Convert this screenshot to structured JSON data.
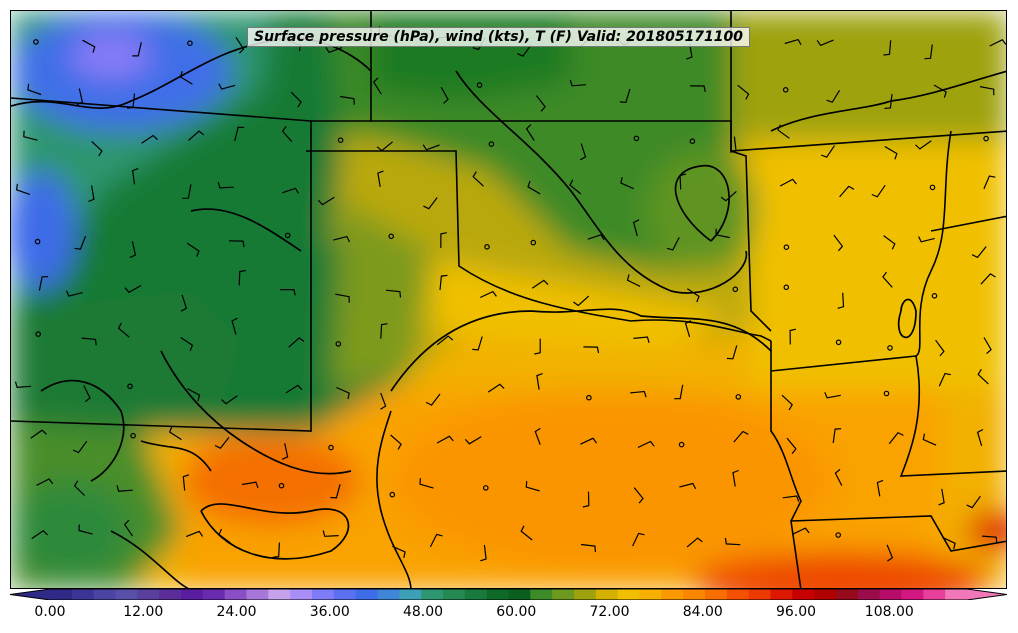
{
  "map": {
    "title": "Surface pressure (hPa), wind (kts), T (F) Valid: 201805171100",
    "colorbar": {
      "min": 0,
      "max": 118,
      "step": 3,
      "tick_labels": [
        "0.00",
        "12.00",
        "24.00",
        "36.00",
        "48.00",
        "60.00",
        "72.00",
        "84.00",
        "96.00",
        "108.00"
      ],
      "colors": [
        "#2e2a86",
        "#3b3695",
        "#4a44a3",
        "#584fa8",
        "#5a3f9c",
        "#5a2d98",
        "#5a1da0",
        "#6a2aae",
        "#8a4fc4",
        "#a878d8",
        "#c7a2ec",
        "#a98ff5",
        "#7f7cf7",
        "#5a70f0",
        "#3e6ce8",
        "#3f86d8",
        "#3ea0b6",
        "#2e9670",
        "#248a52",
        "#1a7a3e",
        "#0f6a2a",
        "#0a5f1e",
        "#3d8a28",
        "#6d9a1e",
        "#9ea20e",
        "#d4b000",
        "#f0c000",
        "#f7b000",
        "#fa9800",
        "#fb8600",
        "#f96e00",
        "#f45200",
        "#ec3a00",
        "#dc1800",
        "#c60000",
        "#b00000",
        "#960a1c",
        "#9a0c4a",
        "#b80c6a",
        "#d01880",
        "#e8409a",
        "#f078b8"
      ]
    },
    "layers": [
      "temperature-fill",
      "isobars",
      "state-borders",
      "wind-barbs"
    ],
    "state_labels": []
  }
}
